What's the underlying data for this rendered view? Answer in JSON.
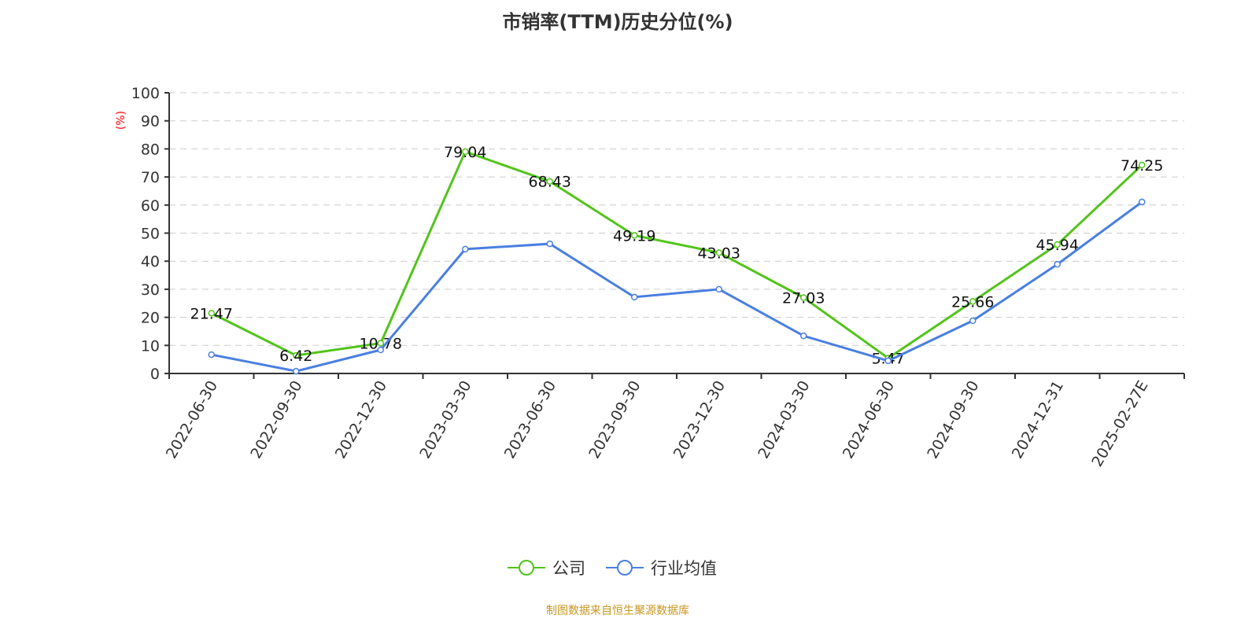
{
  "chart_data": {
    "type": "line",
    "title": "市销率(TTM)历史分位(%)",
    "ylabel": "(%)",
    "xlabel": "",
    "ylim": [
      0,
      100
    ],
    "yticks": [
      0,
      10,
      20,
      30,
      40,
      50,
      60,
      70,
      80,
      90,
      100
    ],
    "grid": true,
    "legend_position": "bottom",
    "categories": [
      "2022-06-30",
      "2022-09-30",
      "2022-12-30",
      "2023-03-30",
      "2023-06-30",
      "2023-09-30",
      "2023-12-30",
      "2024-03-30",
      "2024-06-30",
      "2024-09-30",
      "2024-12-31",
      "2025-02-27E"
    ],
    "series": [
      {
        "name": "公司",
        "color": "#52c41a",
        "labels": true,
        "values": [
          21.47,
          6.42,
          10.78,
          79.04,
          68.43,
          49.19,
          43.03,
          27.03,
          5.47,
          25.66,
          45.94,
          74.25
        ]
      },
      {
        "name": "行业均值",
        "color": "#4a7fe0",
        "labels": false,
        "values": [
          6.7,
          0.8,
          8.4,
          44.3,
          46.2,
          27.2,
          30.0,
          13.4,
          4.5,
          18.8,
          38.9,
          61.1
        ]
      }
    ]
  },
  "footer": {
    "source": "制图数据来自恒生聚源数据库"
  }
}
